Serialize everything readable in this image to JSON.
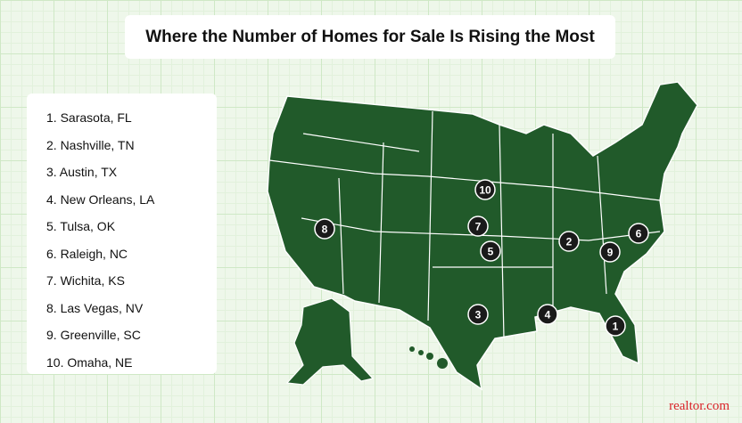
{
  "title": "Where the Number of Homes for Sale Is Rising the Most",
  "list": [
    "1. Sarasota, FL",
    "2. Nashville, TN",
    "3. Austin, TX",
    "4. New Orleans, LA",
    "5. Tulsa, OK",
    "6. Raleigh, NC",
    "7. Wichita, KS",
    "8. Las Vegas, NV",
    "9. Greenville, SC",
    "10. Omaha, NE"
  ],
  "markers": [
    "1",
    "2",
    "3",
    "4",
    "5",
    "6",
    "7",
    "8",
    "9",
    "10"
  ],
  "brand": "realtor.com"
}
